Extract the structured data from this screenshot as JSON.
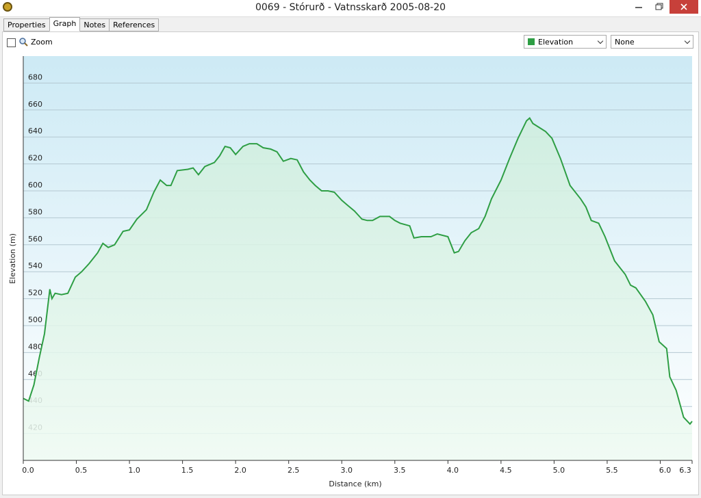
{
  "window": {
    "title": "0069 - Stórurð - Vatnsskarð 2005-08-20"
  },
  "tabs": [
    "Properties",
    "Graph",
    "Notes",
    "References"
  ],
  "toolbar": {
    "zoom_label": "Zoom",
    "secondary_select": "None"
  },
  "chart_data": {
    "type": "line",
    "x_label": "Distance  (km)",
    "y_label": "Elevation (m)",
    "x": [
      0,
      0.05,
      0.1,
      0.15,
      0.2,
      0.25,
      0.27,
      0.3,
      0.36,
      0.42,
      0.49,
      0.55,
      0.62,
      0.7,
      0.75,
      0.8,
      0.86,
      0.94,
      1.0,
      1.07,
      1.16,
      1.23,
      1.29,
      1.35,
      1.39,
      1.45,
      1.55,
      1.6,
      1.65,
      1.71,
      1.8,
      1.85,
      1.9,
      1.95,
      2.0,
      2.07,
      2.13,
      2.2,
      2.26,
      2.33,
      2.39,
      2.45,
      2.52,
      2.58,
      2.64,
      2.7,
      2.75,
      2.81,
      2.87,
      2.93,
      3.0,
      3.06,
      3.12,
      3.19,
      3.24,
      3.29,
      3.36,
      3.45,
      3.5,
      3.55,
      3.64,
      3.68,
      3.75,
      3.84,
      3.9,
      4.0,
      4.06,
      4.1,
      4.16,
      4.22,
      4.29,
      4.35,
      4.41,
      4.5,
      4.58,
      4.66,
      4.74,
      4.77,
      4.8,
      4.86,
      4.92,
      4.98,
      5.06,
      5.15,
      5.25,
      5.3,
      5.35,
      5.42,
      5.48,
      5.57,
      5.67,
      5.72,
      5.77,
      5.86,
      5.93,
      5.99,
      6.06,
      6.09,
      6.15,
      6.22,
      6.28,
      6.3
    ],
    "series": [
      {
        "name": "Elevation",
        "color": "#2e9e44",
        "values": [
          446,
          444,
          456,
          476,
          494,
          527,
          520,
          524,
          523,
          524,
          536,
          540,
          546,
          554,
          561,
          558,
          560,
          570,
          571,
          579,
          586,
          599,
          608,
          604,
          604,
          615,
          616,
          617,
          612,
          618,
          621,
          626,
          633,
          632,
          627,
          633,
          635,
          635,
          632,
          631,
          629,
          622,
          624,
          623,
          614,
          608,
          604,
          600,
          600,
          599,
          593,
          589,
          585,
          579,
          578,
          578,
          581,
          581,
          578,
          576,
          574,
          565,
          566,
          566,
          568,
          566,
          554,
          555,
          563,
          569,
          572,
          581,
          594,
          608,
          624,
          639,
          652,
          654,
          650,
          647,
          644,
          639,
          624,
          604,
          594,
          588,
          578,
          576,
          566,
          548,
          538,
          530,
          528,
          518,
          508,
          488,
          483,
          462,
          452,
          432,
          427,
          429
        ]
      }
    ],
    "xlim": [
      0,
      6.3
    ],
    "ylim": [
      400,
      700
    ],
    "xticks": [
      {
        "value": 0,
        "label": "0.0"
      },
      0.5,
      {
        "value": 1,
        "label": "1.0"
      },
      1.5,
      {
        "value": 2,
        "label": "2.0"
      },
      2.5,
      {
        "value": 3,
        "label": "3.0"
      },
      3.5,
      {
        "value": 4,
        "label": "4.0"
      },
      4.5,
      {
        "value": 5,
        "label": "5.0"
      },
      5.5,
      {
        "value": 6,
        "label": "6.0"
      },
      6.3
    ],
    "yticks": [
      420,
      440,
      460,
      480,
      500,
      520,
      540,
      560,
      580,
      600,
      620,
      640,
      660,
      680
    ],
    "grid": true
  }
}
